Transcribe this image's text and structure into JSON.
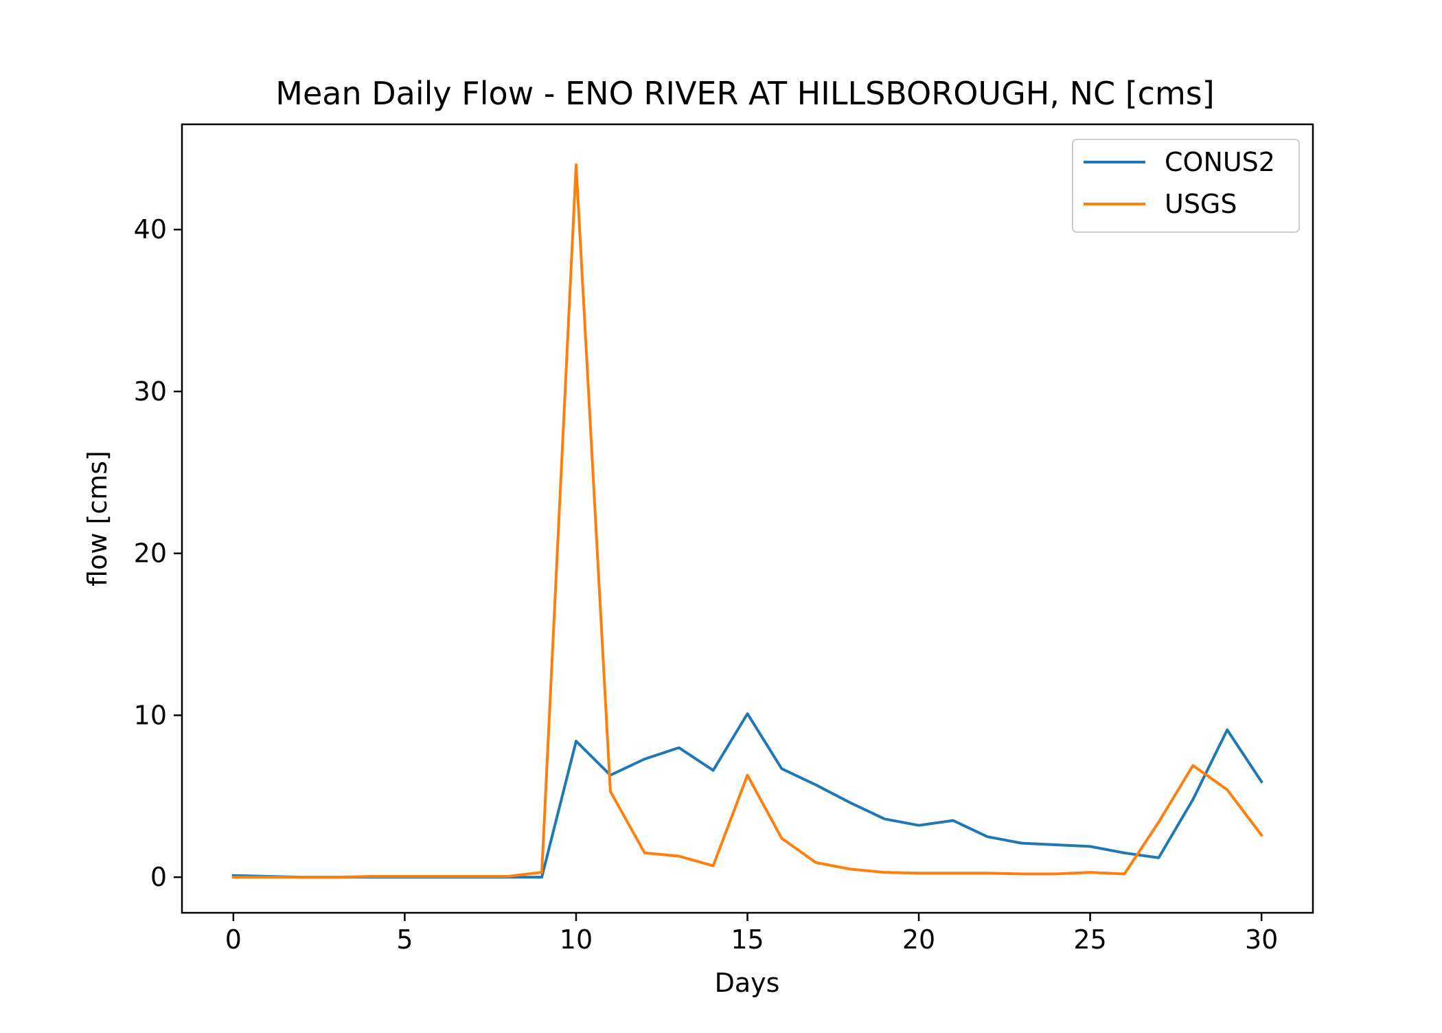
{
  "chart_data": {
    "type": "line",
    "title": "Mean Daily Flow - ENO RIVER AT HILLSBOROUGH, NC [cms]",
    "xlabel": "Days",
    "ylabel": "flow [cms]",
    "xlim": [
      -1.5,
      31.5
    ],
    "ylim": [
      -2.2,
      46.5
    ],
    "xticks": [
      0,
      5,
      10,
      15,
      20,
      25,
      30
    ],
    "yticks": [
      0,
      10,
      20,
      30,
      40
    ],
    "grid": false,
    "legend_position": "upper right",
    "x": [
      0,
      1,
      2,
      3,
      4,
      5,
      6,
      7,
      8,
      9,
      10,
      11,
      12,
      13,
      14,
      15,
      16,
      17,
      18,
      19,
      20,
      21,
      22,
      23,
      24,
      25,
      26,
      27,
      28,
      29,
      30
    ],
    "series": [
      {
        "name": "CONUS2",
        "color": "#1f77b4",
        "values": [
          0.1,
          0.05,
          0.0,
          0.0,
          0.0,
          0.0,
          0.0,
          0.0,
          0.0,
          0.0,
          8.4,
          6.3,
          7.3,
          8.0,
          6.6,
          10.1,
          6.7,
          5.7,
          4.6,
          3.6,
          3.2,
          3.5,
          2.5,
          2.1,
          2.0,
          1.9,
          1.5,
          1.2,
          4.8,
          9.1,
          5.9
        ]
      },
      {
        "name": "USGS",
        "color": "#ff7f0e",
        "values": [
          0.0,
          0.0,
          0.0,
          0.0,
          0.05,
          0.05,
          0.05,
          0.05,
          0.05,
          0.3,
          44.0,
          5.3,
          1.5,
          1.3,
          0.7,
          6.3,
          2.4,
          0.9,
          0.5,
          0.3,
          0.25,
          0.25,
          0.25,
          0.2,
          0.2,
          0.3,
          0.2,
          3.4,
          6.9,
          5.4,
          2.6
        ]
      }
    ]
  }
}
